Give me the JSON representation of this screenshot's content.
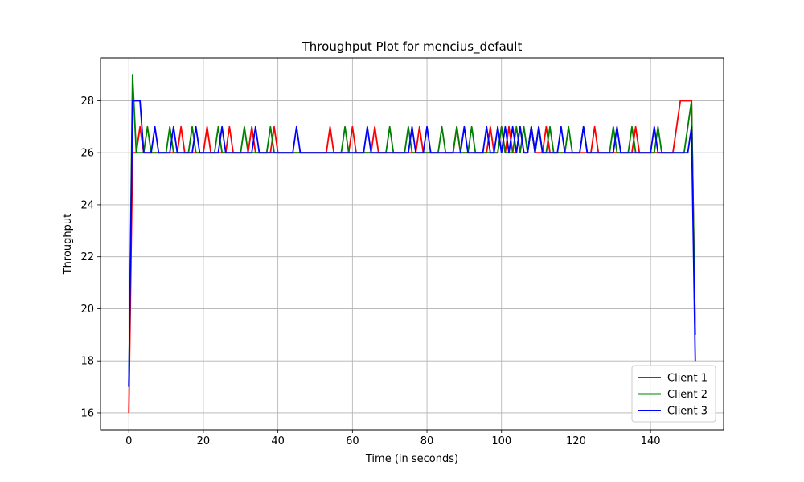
{
  "chart_data": {
    "type": "line",
    "title": "Throughput Plot for mencius_default",
    "xlabel": "Time (in seconds)",
    "ylabel": "Throughput",
    "xlim": [
      -7.6,
      159.6
    ],
    "ylim": [
      15.35,
      29.65
    ],
    "xticks": [
      0,
      20,
      40,
      60,
      80,
      100,
      120,
      140
    ],
    "yticks": [
      16,
      18,
      20,
      22,
      24,
      26,
      28
    ],
    "grid": true,
    "legend_position": "lower-right",
    "series": [
      {
        "name": "Client 1",
        "color": "#ff0000",
        "x": [
          0,
          1,
          2,
          3,
          4,
          5,
          6,
          7,
          8,
          9,
          10,
          11,
          12,
          13,
          14,
          15,
          16,
          17,
          18,
          19,
          20,
          21,
          22,
          23,
          24,
          25,
          26,
          27,
          28,
          29,
          30,
          31,
          32,
          33,
          34,
          35,
          36,
          37,
          38,
          39,
          40,
          41,
          42,
          43,
          44,
          45,
          46,
          47,
          48,
          49,
          50,
          51,
          52,
          53,
          54,
          55,
          56,
          57,
          58,
          59,
          60,
          61,
          62,
          63,
          64,
          65,
          66,
          67,
          68,
          69,
          70,
          71,
          72,
          73,
          74,
          75,
          76,
          77,
          78,
          79,
          80,
          81,
          82,
          83,
          84,
          85,
          86,
          87,
          88,
          89,
          90,
          91,
          92,
          93,
          94,
          95,
          96,
          97,
          98,
          99,
          100,
          101,
          102,
          103,
          104,
          105,
          106,
          107,
          108,
          109,
          110,
          111,
          112,
          113,
          114,
          115,
          116,
          117,
          118,
          119,
          120,
          121,
          122,
          123,
          124,
          125,
          126,
          127,
          128,
          129,
          130,
          131,
          132,
          133,
          134,
          135,
          136,
          137,
          138,
          139,
          140,
          141,
          142,
          143,
          144,
          145,
          146,
          147,
          148,
          149,
          150,
          151,
          152
        ],
        "y": [
          16,
          26,
          26,
          27,
          26,
          26,
          26,
          26,
          26,
          26,
          26,
          26,
          26,
          26,
          27,
          26,
          26,
          26,
          26,
          26,
          26,
          27,
          26,
          26,
          26,
          26,
          26,
          27,
          26,
          26,
          26,
          26,
          26,
          27,
          26,
          26,
          26,
          26,
          26,
          27,
          26,
          26,
          26,
          26,
          26,
          26,
          26,
          26,
          26,
          26,
          26,
          26,
          26,
          26,
          27,
          26,
          26,
          26,
          26,
          26,
          27,
          26,
          26,
          26,
          26,
          26,
          27,
          26,
          26,
          26,
          26,
          26,
          26,
          26,
          26,
          26,
          26,
          26,
          27,
          26,
          26,
          26,
          26,
          26,
          26,
          26,
          26,
          26,
          27,
          26,
          26,
          26,
          26,
          26,
          26,
          26,
          26,
          27,
          26,
          26,
          27,
          26,
          27,
          26,
          26,
          27,
          26,
          26,
          27,
          26,
          26,
          26,
          27,
          26,
          26,
          26,
          26,
          26,
          26,
          26,
          26,
          26,
          26,
          26,
          26,
          27,
          26,
          26,
          26,
          26,
          26,
          26,
          26,
          26,
          26,
          26,
          27,
          26,
          26,
          26,
          26,
          26,
          26,
          26,
          26,
          26,
          26,
          27,
          28,
          28,
          28,
          28,
          19
        ]
      },
      {
        "name": "Client 2",
        "color": "#008000",
        "x": [
          0,
          1,
          2,
          3,
          4,
          5,
          6,
          7,
          8,
          9,
          10,
          11,
          12,
          13,
          14,
          15,
          16,
          17,
          18,
          19,
          20,
          21,
          22,
          23,
          24,
          25,
          26,
          27,
          28,
          29,
          30,
          31,
          32,
          33,
          34,
          35,
          36,
          37,
          38,
          39,
          40,
          41,
          42,
          43,
          44,
          45,
          46,
          47,
          48,
          49,
          50,
          51,
          52,
          53,
          54,
          55,
          56,
          57,
          58,
          59,
          60,
          61,
          62,
          63,
          64,
          65,
          66,
          67,
          68,
          69,
          70,
          71,
          72,
          73,
          74,
          75,
          76,
          77,
          78,
          79,
          80,
          81,
          82,
          83,
          84,
          85,
          86,
          87,
          88,
          89,
          90,
          91,
          92,
          93,
          94,
          95,
          96,
          97,
          98,
          99,
          100,
          101,
          102,
          103,
          104,
          105,
          106,
          107,
          108,
          109,
          110,
          111,
          112,
          113,
          114,
          115,
          116,
          117,
          118,
          119,
          120,
          121,
          122,
          123,
          124,
          125,
          126,
          127,
          128,
          129,
          130,
          131,
          132,
          133,
          134,
          135,
          136,
          137,
          138,
          139,
          140,
          141,
          142,
          143,
          144,
          145,
          146,
          147,
          148,
          149,
          150,
          151,
          152
        ],
        "y": [
          17,
          29,
          26,
          26,
          26,
          27,
          26,
          26,
          26,
          26,
          26,
          27,
          26,
          26,
          26,
          26,
          26,
          27,
          26,
          26,
          26,
          26,
          26,
          26,
          27,
          26,
          26,
          26,
          26,
          26,
          26,
          27,
          26,
          26,
          26,
          26,
          26,
          26,
          27,
          26,
          26,
          26,
          26,
          26,
          26,
          26,
          26,
          26,
          26,
          26,
          26,
          26,
          26,
          26,
          26,
          26,
          26,
          26,
          27,
          26,
          26,
          26,
          26,
          26,
          26,
          26,
          26,
          26,
          26,
          26,
          27,
          26,
          26,
          26,
          26,
          27,
          26,
          26,
          26,
          26,
          26,
          26,
          26,
          26,
          27,
          26,
          26,
          26,
          27,
          26,
          26,
          26,
          27,
          26,
          26,
          26,
          26,
          26,
          26,
          26,
          27,
          26,
          26,
          26,
          27,
          26,
          27,
          26,
          27,
          26,
          27,
          26,
          26,
          27,
          26,
          26,
          26,
          26,
          27,
          26,
          26,
          26,
          27,
          26,
          26,
          26,
          26,
          26,
          26,
          26,
          27,
          26,
          26,
          26,
          26,
          27,
          26,
          26,
          26,
          26,
          26,
          26,
          27,
          26,
          26,
          26,
          26,
          26,
          26,
          26,
          27,
          28,
          19
        ]
      },
      {
        "name": "Client 3",
        "color": "#0000ff",
        "x": [
          0,
          1,
          2,
          3,
          4,
          5,
          6,
          7,
          8,
          9,
          10,
          11,
          12,
          13,
          14,
          15,
          16,
          17,
          18,
          19,
          20,
          21,
          22,
          23,
          24,
          25,
          26,
          27,
          28,
          29,
          30,
          31,
          32,
          33,
          34,
          35,
          36,
          37,
          38,
          39,
          40,
          41,
          42,
          43,
          44,
          45,
          46,
          47,
          48,
          49,
          50,
          51,
          52,
          53,
          54,
          55,
          56,
          57,
          58,
          59,
          60,
          61,
          62,
          63,
          64,
          65,
          66,
          67,
          68,
          69,
          70,
          71,
          72,
          73,
          74,
          75,
          76,
          77,
          78,
          79,
          80,
          81,
          82,
          83,
          84,
          85,
          86,
          87,
          88,
          89,
          90,
          91,
          92,
          93,
          94,
          95,
          96,
          97,
          98,
          99,
          100,
          101,
          102,
          103,
          104,
          105,
          106,
          107,
          108,
          109,
          110,
          111,
          112,
          113,
          114,
          115,
          116,
          117,
          118,
          119,
          120,
          121,
          122,
          123,
          124,
          125,
          126,
          127,
          128,
          129,
          130,
          131,
          132,
          133,
          134,
          135,
          136,
          137,
          138,
          139,
          140,
          141,
          142,
          143,
          144,
          145,
          146,
          147,
          148,
          149,
          150,
          151,
          152
        ],
        "y": [
          17,
          28,
          28,
          28,
          26,
          26,
          26,
          27,
          26,
          26,
          26,
          26,
          27,
          26,
          26,
          26,
          26,
          26,
          27,
          26,
          26,
          26,
          26,
          26,
          26,
          27,
          26,
          26,
          26,
          26,
          26,
          26,
          26,
          26,
          27,
          26,
          26,
          26,
          26,
          26,
          26,
          26,
          26,
          26,
          26,
          27,
          26,
          26,
          26,
          26,
          26,
          26,
          26,
          26,
          26,
          26,
          26,
          26,
          26,
          26,
          26,
          26,
          26,
          26,
          27,
          26,
          26,
          26,
          26,
          26,
          26,
          26,
          26,
          26,
          26,
          26,
          27,
          26,
          26,
          26,
          27,
          26,
          26,
          26,
          26,
          26,
          26,
          26,
          26,
          26,
          27,
          26,
          26,
          26,
          26,
          26,
          27,
          26,
          26,
          27,
          26,
          27,
          26,
          27,
          26,
          27,
          26,
          26,
          27,
          26,
          27,
          26,
          26,
          26,
          26,
          26,
          27,
          26,
          26,
          26,
          26,
          26,
          27,
          26,
          26,
          26,
          26,
          26,
          26,
          26,
          26,
          27,
          26,
          26,
          26,
          26,
          26,
          26,
          26,
          26,
          26,
          27,
          26,
          26,
          26,
          26,
          26,
          26,
          26,
          26,
          26,
          27,
          18
        ]
      }
    ]
  }
}
